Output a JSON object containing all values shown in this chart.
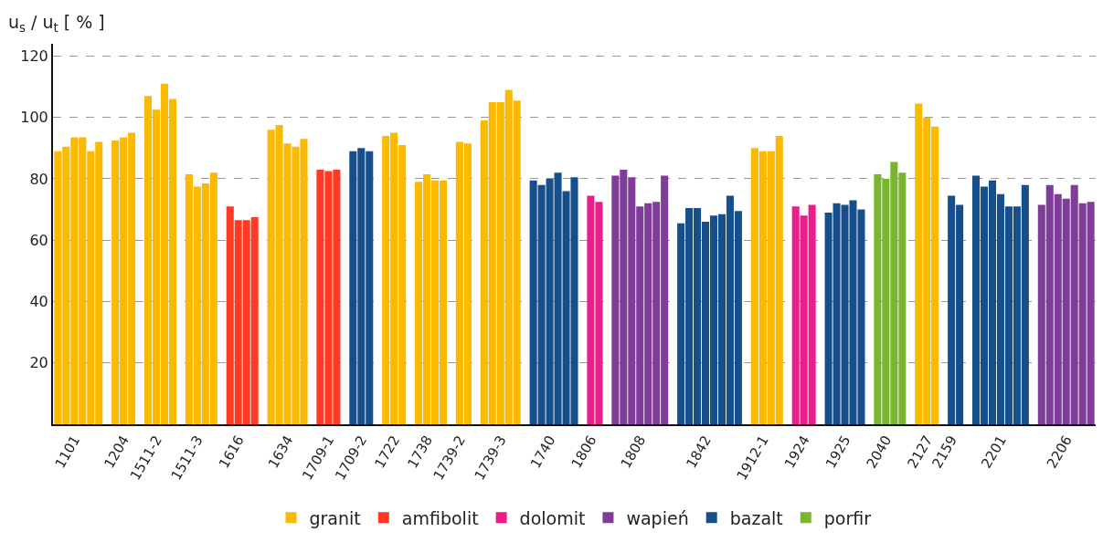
{
  "chart_data": {
    "type": "bar",
    "ylabel": "u$_{s}$ / u$_{t}$ [ % ]",
    "categories": [
      null,
      null,
      "1101",
      null,
      null,
      null,
      null,
      null,
      "1204",
      null,
      null,
      null,
      "1511-2",
      null,
      null,
      null,
      null,
      "1511-3",
      null,
      null,
      null,
      null,
      "1616",
      null,
      null,
      null,
      null,
      null,
      "1634",
      null,
      null,
      null,
      null,
      "1709-1",
      null,
      null,
      null,
      "1709-2",
      null,
      null,
      null,
      "1722",
      null,
      null,
      null,
      "1738",
      null,
      null,
      null,
      "1739-2",
      null,
      null,
      null,
      null,
      "1739-3",
      null,
      null,
      null,
      null,
      null,
      "1740",
      null,
      null,
      null,
      null,
      "1806",
      null,
      null,
      null,
      null,
      null,
      "1808",
      null,
      null,
      null,
      null,
      null,
      null,
      null,
      "1842",
      null,
      null,
      null,
      null,
      null,
      null,
      "1912-1",
      null,
      null,
      null,
      null,
      "1924",
      null,
      null,
      null,
      null,
      "1925",
      null,
      null,
      null,
      null,
      "2040",
      null,
      null,
      null,
      null,
      "2127",
      null,
      null,
      "2159",
      null,
      null,
      null,
      null,
      null,
      "2201",
      null,
      null,
      null,
      null,
      null,
      null,
      null,
      "2206",
      null,
      null,
      null
    ],
    "series": [
      {
        "name": "granit",
        "color": "#fbb900",
        "values": [
          89,
          90.5,
          93.5,
          93.5,
          89,
          92,
          null,
          92.5,
          93.5,
          95,
          null,
          107,
          102.5,
          111,
          106,
          null,
          81.5,
          77.5,
          78.5,
          82,
          null,
          null,
          null,
          null,
          null,
          null,
          96,
          97.5,
          91.5,
          90.5,
          93,
          null,
          null,
          null,
          null,
          null,
          null,
          null,
          null,
          null,
          94,
          95,
          91,
          null,
          79,
          81.5,
          79.5,
          79.5,
          null,
          92,
          91.5,
          null,
          99,
          105,
          105,
          109,
          105.5,
          null,
          null,
          null,
          null,
          null,
          null,
          null,
          null,
          null,
          null,
          null,
          null,
          null,
          null,
          null,
          null,
          null,
          null,
          null,
          null,
          null,
          null,
          null,
          null,
          null,
          null,
          null,
          null,
          90,
          89,
          89,
          94,
          null,
          null,
          null,
          null,
          null,
          null,
          null,
          null,
          null,
          null,
          null,
          null,
          null,
          null,
          null,
          null,
          104.5,
          100,
          97,
          null,
          null,
          null,
          null,
          null,
          null,
          null,
          null,
          null,
          null,
          null,
          null,
          null,
          null,
          null,
          null,
          null,
          null,
          null
        ]
      },
      {
        "name": "amfibolit",
        "color": "#ff3a24",
        "values": [
          null,
          null,
          null,
          null,
          null,
          null,
          null,
          null,
          null,
          null,
          null,
          null,
          null,
          null,
          null,
          null,
          null,
          null,
          null,
          null,
          null,
          71,
          66.5,
          66.5,
          67.5,
          null,
          null,
          null,
          null,
          null,
          null,
          null,
          83,
          82.5,
          83,
          null,
          null,
          null,
          null,
          null,
          null,
          null,
          null,
          null,
          null,
          null,
          null,
          null,
          null,
          null,
          null,
          null,
          null,
          null,
          null,
          null,
          null,
          null,
          null,
          null,
          null,
          null,
          null,
          null,
          null,
          null,
          null,
          null,
          null,
          null,
          null,
          null,
          null,
          null,
          null,
          null,
          null,
          null,
          null,
          null,
          null,
          null,
          null,
          null,
          null,
          null,
          null,
          null,
          null,
          null,
          null,
          null,
          null,
          null,
          null,
          null,
          null,
          null,
          null,
          null,
          null,
          null,
          null,
          null,
          null,
          null,
          null,
          null,
          null,
          null,
          null,
          null,
          null,
          null,
          null,
          null,
          null,
          null,
          null,
          null,
          null,
          null,
          null,
          null,
          null,
          null,
          null
        ]
      },
      {
        "name": "dolomit",
        "color": "#e91e8c",
        "values": [
          null,
          null,
          null,
          null,
          null,
          null,
          null,
          null,
          null,
          null,
          null,
          null,
          null,
          null,
          null,
          null,
          null,
          null,
          null,
          null,
          null,
          null,
          null,
          null,
          null,
          null,
          null,
          null,
          null,
          null,
          null,
          null,
          null,
          null,
          null,
          null,
          null,
          null,
          null,
          null,
          null,
          null,
          null,
          null,
          null,
          null,
          null,
          null,
          null,
          null,
          null,
          null,
          null,
          null,
          null,
          null,
          null,
          null,
          null,
          null,
          null,
          null,
          null,
          null,
          null,
          74.5,
          72.5,
          null,
          null,
          null,
          null,
          null,
          null,
          null,
          null,
          null,
          null,
          null,
          null,
          null,
          null,
          null,
          null,
          null,
          null,
          null,
          null,
          null,
          null,
          null,
          71,
          68,
          71.5,
          null,
          null,
          null,
          null,
          null,
          null,
          null,
          null,
          null,
          null,
          null,
          null,
          null,
          null,
          null,
          null,
          null,
          null,
          null,
          null,
          null,
          null,
          null,
          null,
          null,
          null,
          null,
          null,
          null,
          null,
          null,
          null,
          null,
          null
        ]
      },
      {
        "name": "wapień",
        "color": "#7f3c98",
        "values": [
          null,
          null,
          null,
          null,
          null,
          null,
          null,
          null,
          null,
          null,
          null,
          null,
          null,
          null,
          null,
          null,
          null,
          null,
          null,
          null,
          null,
          null,
          null,
          null,
          null,
          null,
          null,
          null,
          null,
          null,
          null,
          null,
          null,
          null,
          null,
          null,
          null,
          null,
          null,
          null,
          null,
          null,
          null,
          null,
          null,
          null,
          null,
          null,
          null,
          null,
          null,
          null,
          null,
          null,
          null,
          null,
          null,
          null,
          null,
          null,
          null,
          null,
          null,
          null,
          null,
          null,
          null,
          null,
          81,
          83,
          80.5,
          71,
          72,
          72.5,
          81,
          null,
          null,
          null,
          null,
          null,
          null,
          null,
          null,
          null,
          null,
          null,
          null,
          null,
          null,
          null,
          null,
          null,
          null,
          null,
          null,
          null,
          null,
          null,
          null,
          null,
          null,
          null,
          null,
          null,
          null,
          null,
          null,
          null,
          null,
          null,
          null,
          null,
          null,
          null,
          null,
          null,
          null,
          null,
          null,
          null,
          71.5,
          78,
          75,
          73.5,
          78,
          72,
          72.5
        ]
      },
      {
        "name": "bazalt",
        "color": "#174f8c",
        "values": [
          null,
          null,
          null,
          null,
          null,
          null,
          null,
          null,
          null,
          null,
          null,
          null,
          null,
          null,
          null,
          null,
          null,
          null,
          null,
          null,
          null,
          null,
          null,
          null,
          null,
          null,
          null,
          null,
          null,
          null,
          null,
          null,
          null,
          null,
          null,
          null,
          89,
          90,
          89,
          null,
          null,
          null,
          null,
          null,
          null,
          null,
          null,
          null,
          null,
          null,
          null,
          null,
          null,
          null,
          null,
          null,
          null,
          null,
          79.5,
          78,
          80,
          82,
          76,
          80.5,
          null,
          null,
          null,
          null,
          null,
          null,
          null,
          null,
          null,
          null,
          null,
          null,
          65.5,
          70.5,
          70.5,
          66,
          68,
          68.5,
          74.5,
          69.5,
          null,
          null,
          null,
          null,
          null,
          null,
          null,
          null,
          null,
          null,
          69,
          72,
          71.5,
          73,
          70,
          null,
          null,
          null,
          null,
          null,
          null,
          null,
          null,
          null,
          null,
          74.5,
          71.5,
          null,
          81,
          77.5,
          79.5,
          75,
          71,
          71,
          78,
          null,
          null,
          null,
          null,
          null,
          null,
          null,
          null
        ]
      },
      {
        "name": "porfir",
        "color": "#7ab52f",
        "values": [
          null,
          null,
          null,
          null,
          null,
          null,
          null,
          null,
          null,
          null,
          null,
          null,
          null,
          null,
          null,
          null,
          null,
          null,
          null,
          null,
          null,
          null,
          null,
          null,
          null,
          null,
          null,
          null,
          null,
          null,
          null,
          null,
          null,
          null,
          null,
          null,
          null,
          null,
          null,
          null,
          null,
          null,
          null,
          null,
          null,
          null,
          null,
          null,
          null,
          null,
          null,
          null,
          null,
          null,
          null,
          null,
          null,
          null,
          null,
          null,
          null,
          null,
          null,
          null,
          null,
          null,
          null,
          null,
          null,
          null,
          null,
          null,
          null,
          null,
          null,
          null,
          null,
          null,
          null,
          null,
          null,
          null,
          null,
          null,
          null,
          null,
          null,
          null,
          null,
          null,
          null,
          null,
          null,
          null,
          null,
          null,
          null,
          null,
          null,
          null,
          81.5,
          80,
          85.5,
          82,
          null,
          null,
          null,
          null,
          null,
          null,
          null,
          null,
          null,
          null,
          null,
          null,
          null,
          null,
          null,
          null,
          null,
          null,
          null,
          null,
          null,
          null,
          null
        ]
      }
    ],
    "ylim": [
      0,
      124
    ],
    "yticks": [
      20,
      40,
      60,
      80,
      100,
      120
    ],
    "grid": "y",
    "legend": "bottom"
  }
}
